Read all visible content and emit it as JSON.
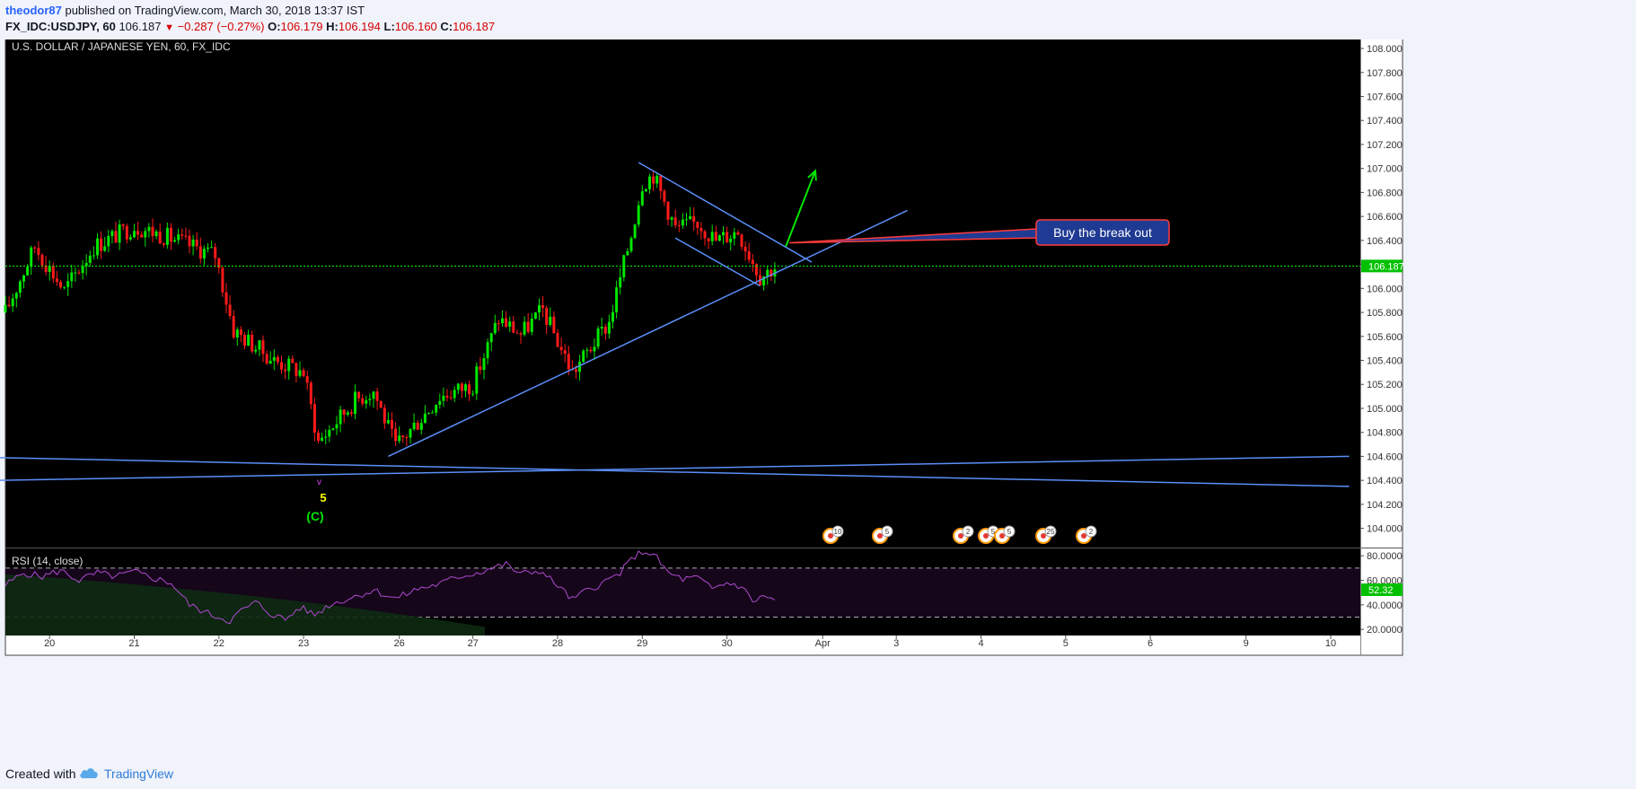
{
  "header": {
    "author": "theodor87",
    "published_text": "published on TradingView.com, March 30, 2018 13:37 IST",
    "symbol_line": "FX_IDC:USDJPY, 60",
    "last": "106.187",
    "change": "−0.287 (−0.27%)",
    "o_label": "O:",
    "o_value": "106.179",
    "h_label": "H:",
    "h_value": "106.194",
    "l_label": "L:",
    "l_value": "106.160",
    "c_label": "C:",
    "c_value": "106.187"
  },
  "footer": {
    "created_with": "Created with",
    "brand": "TradingView"
  },
  "colors": {
    "background": "#000000",
    "up_candle": "#00e600",
    "down_candle": "#ff1a1a",
    "trendline": "#5b8ff9",
    "rsi_line": "#b04ad0",
    "rsi_band": "#15061a",
    "callout_bg": "#1f3a93",
    "callout_border": "#ff3b3b",
    "price_line": "#00ff00",
    "wave_label": "#ffff00",
    "wave_c_label": "#00e600"
  },
  "chart_data": {
    "type": "candlestick",
    "title": "U.S. DOLLAR / JAPANESE YEN, 60, FX_IDC",
    "ylim": [
      103.84,
      108.12
    ],
    "y_ticks": [
      "108.000",
      "107.800",
      "107.600",
      "107.400",
      "107.200",
      "107.000",
      "106.800",
      "106.600",
      "106.400",
      "106.200",
      "106.000",
      "105.800",
      "105.600",
      "105.400",
      "105.200",
      "105.000",
      "104.800",
      "104.600",
      "104.400",
      "104.200",
      "104.000"
    ],
    "x_ticks": [
      "20",
      "21",
      "22",
      "23",
      "26",
      "27",
      "28",
      "29",
      "30",
      "Apr",
      "3",
      "4",
      "5",
      "6",
      "9",
      "10"
    ],
    "x_tick_slots": [
      12,
      35,
      58,
      81,
      107,
      127,
      150,
      173,
      196,
      222,
      242,
      265,
      288,
      311,
      337,
      360
    ],
    "last_price_label": "106.187",
    "last_price": 106.187,
    "close_anchors": [
      [
        0,
        105.8
      ],
      [
        8,
        106.35
      ],
      [
        16,
        105.98
      ],
      [
        24,
        106.35
      ],
      [
        35,
        106.52
      ],
      [
        43,
        106.44
      ],
      [
        57,
        106.28
      ],
      [
        62,
        105.65
      ],
      [
        73,
        105.4
      ],
      [
        81,
        105.3
      ],
      [
        85,
        104.72
      ],
      [
        95,
        105.07
      ],
      [
        100,
        105.15
      ],
      [
        106,
        104.68
      ],
      [
        118,
        105.1
      ],
      [
        127,
        105.2
      ],
      [
        134,
        105.75
      ],
      [
        140,
        105.62
      ],
      [
        146,
        105.82
      ],
      [
        154,
        105.3
      ],
      [
        164,
        105.72
      ],
      [
        170,
        106.45
      ],
      [
        173,
        106.88
      ],
      [
        176,
        106.95
      ],
      [
        182,
        106.5
      ],
      [
        188,
        106.55
      ],
      [
        193,
        106.4
      ],
      [
        199,
        106.48
      ],
      [
        205,
        106.1
      ],
      [
        209,
        106.18
      ]
    ],
    "rsi": {
      "label": "RSI (14, close)",
      "ylim": [
        15,
        86
      ],
      "y_ticks": [
        "80.0000",
        "60.0000",
        "40.0000",
        "20.0000"
      ],
      "overbought": 70,
      "oversold": 30,
      "value_label": "52.32",
      "value": 52.32,
      "anchors": [
        [
          0,
          56
        ],
        [
          5,
          66
        ],
        [
          10,
          63
        ],
        [
          15,
          68
        ],
        [
          20,
          60
        ],
        [
          25,
          66
        ],
        [
          30,
          63
        ],
        [
          35,
          67
        ],
        [
          40,
          62
        ],
        [
          45,
          58
        ],
        [
          50,
          40
        ],
        [
          55,
          33
        ],
        [
          58,
          30
        ],
        [
          61,
          27
        ],
        [
          64,
          35
        ],
        [
          68,
          42
        ],
        [
          72,
          33
        ],
        [
          76,
          28
        ],
        [
          80,
          38
        ],
        [
          84,
          32
        ],
        [
          88,
          40
        ],
        [
          95,
          47
        ],
        [
          100,
          52
        ],
        [
          106,
          45
        ],
        [
          112,
          53
        ],
        [
          118,
          57
        ],
        [
          123,
          63
        ],
        [
          128,
          66
        ],
        [
          132,
          70
        ],
        [
          136,
          73
        ],
        [
          140,
          65
        ],
        [
          145,
          68
        ],
        [
          150,
          56
        ],
        [
          154,
          44
        ],
        [
          158,
          52
        ],
        [
          163,
          59
        ],
        [
          167,
          66
        ],
        [
          171,
          80
        ],
        [
          174,
          84
        ],
        [
          177,
          78
        ],
        [
          180,
          66
        ],
        [
          184,
          61
        ],
        [
          188,
          62
        ],
        [
          192,
          53
        ],
        [
          196,
          58
        ],
        [
          200,
          55
        ],
        [
          203,
          43
        ],
        [
          206,
          47
        ],
        [
          209,
          44
        ]
      ]
    },
    "drawings": {
      "falling_channel_upper": [
        [
          172,
          107.05
        ],
        [
          219,
          106.22
        ]
      ],
      "falling_channel_lower": [
        [
          182,
          106.42
        ],
        [
          205,
          106.02
        ]
      ],
      "rising_support_line": [
        [
          104,
          104.6
        ],
        [
          245,
          106.65
        ]
      ],
      "wide_line_a": [
        [
          -2,
          104.59
        ],
        [
          365,
          104.35
        ]
      ],
      "wide_line_b": [
        [
          -2,
          104.4
        ],
        [
          365,
          104.6
        ]
      ],
      "breakout_arrow": [
        [
          212,
          106.35
        ],
        [
          220,
          106.98
        ]
      ],
      "callout_text": "Buy the break out",
      "callout_anchor": [
        213,
        106.38
      ]
    },
    "wave_labels": {
      "small": "v",
      "count": "5",
      "degree": "(C)"
    },
    "event_badges": [
      "10",
      "5",
      "2",
      "5",
      "5",
      "25",
      "2"
    ]
  }
}
